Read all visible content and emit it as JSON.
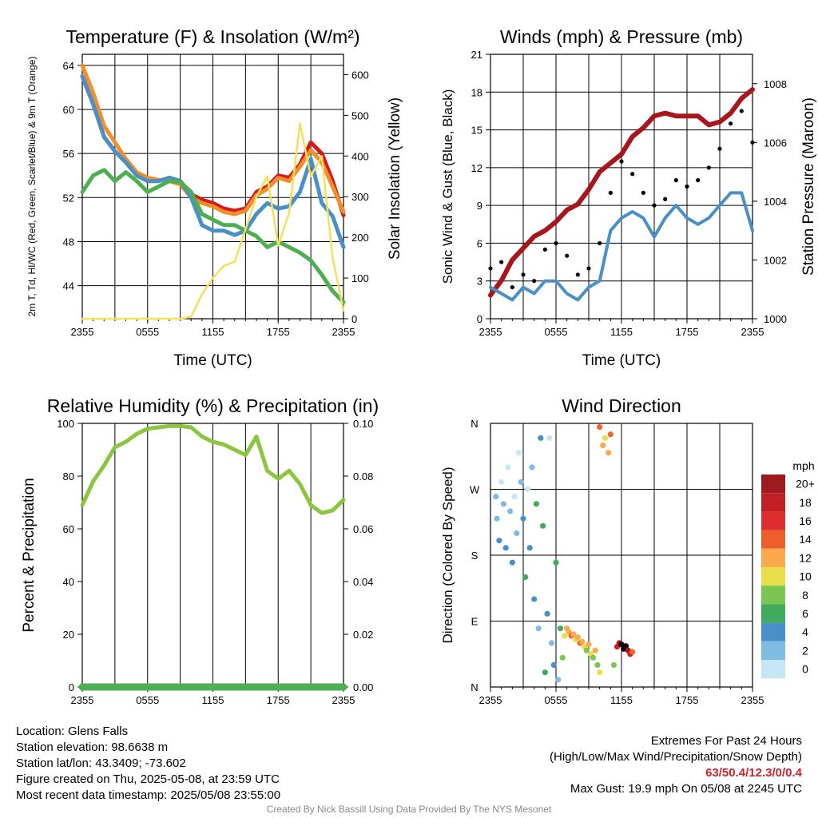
{
  "chart_data": [
    {
      "type": "line",
      "title": "Temperature (F) & Insolation (W/m²)",
      "xlabel": "Time (UTC)",
      "ylabel": "2m T, Td, HI/WC (Red, Green, Scarlet/Blue) & 9m T (Orange)",
      "y2label": "Solar Insolation (Yellow)",
      "x_ticks": [
        "2355",
        "0555",
        "1155",
        "1755",
        "2355"
      ],
      "ylim": [
        41,
        65
      ],
      "y_ticks": [
        44,
        48,
        52,
        56,
        60,
        64
      ],
      "y2lim": [
        0,
        650
      ],
      "y2_ticks": [
        0,
        100,
        200,
        300,
        400,
        500,
        600
      ],
      "hours": [
        0,
        1,
        2,
        3,
        4,
        5,
        6,
        7,
        8,
        9,
        10,
        11,
        12,
        13,
        14,
        15,
        16,
        17,
        18,
        19,
        20,
        21,
        22,
        23,
        24
      ],
      "series": [
        {
          "color": "#d7191c",
          "axis": "left",
          "values": [
            63,
            60.5,
            57.5,
            56.2,
            55.2,
            54,
            53.5,
            53.5,
            53.8,
            53.5,
            52.3,
            51.8,
            51.5,
            51,
            50.8,
            51,
            52.5,
            53,
            54,
            53.8,
            55,
            57,
            56,
            53.5,
            50.4
          ]
        },
        {
          "color": "#f28e2b",
          "axis": "left",
          "values": [
            64,
            61.5,
            58.5,
            57,
            55.5,
            54.3,
            53.8,
            53.6,
            53.5,
            53.2,
            52,
            51.5,
            51.2,
            50.7,
            50.5,
            50.8,
            52.2,
            52.8,
            53.8,
            53.5,
            54.8,
            56.3,
            55.2,
            53,
            50.7
          ]
        },
        {
          "color": "#4a90c8",
          "axis": "left",
          "values": [
            63,
            60.5,
            57.5,
            56.2,
            55.2,
            54,
            53.5,
            53.5,
            53.8,
            53.5,
            52,
            49.5,
            49,
            49,
            48.6,
            49,
            50.5,
            51.5,
            51,
            51.2,
            52.5,
            55.5,
            51.5,
            50.3,
            47.5
          ]
        },
        {
          "color": "#4caf50",
          "axis": "left",
          "values": [
            52.5,
            54,
            54.5,
            53.5,
            54.3,
            53.5,
            52.5,
            53,
            53.5,
            53.4,
            52.5,
            50.5,
            50,
            49.5,
            49.5,
            49,
            48.5,
            47.5,
            48,
            47.5,
            47,
            46.3,
            45,
            43.5,
            42.5
          ]
        },
        {
          "color": "#f5e05a",
          "axis": "right",
          "values": [
            0,
            0,
            0,
            0,
            0,
            0,
            0,
            0,
            0,
            0,
            5,
            60,
            100,
            130,
            140,
            220,
            300,
            350,
            180,
            260,
            480,
            350,
            400,
            150,
            20
          ]
        }
      ]
    },
    {
      "type": "scatter",
      "title": "Winds (mph) & Pressure (mb)",
      "xlabel": "Time (UTC)",
      "ylabel": "Sonic Wind & Gust (Blue, Black)",
      "y2label": "Station Pressure (Maroon)",
      "x_ticks": [
        "2355",
        "0555",
        "1155",
        "1755",
        "2355"
      ],
      "ylim": [
        0,
        21
      ],
      "y_ticks": [
        0,
        3,
        6,
        9,
        12,
        15,
        18,
        21
      ],
      "y2lim": [
        1000,
        1009
      ],
      "y2_ticks": [
        1000,
        1002,
        1004,
        1006,
        1008
      ],
      "hours": [
        0,
        1,
        2,
        3,
        4,
        5,
        6,
        7,
        8,
        9,
        10,
        11,
        12,
        13,
        14,
        15,
        16,
        17,
        18,
        19,
        20,
        21,
        22,
        23,
        24
      ],
      "series": [
        {
          "color": "#a8151b",
          "axis": "right",
          "kind": "line",
          "values": [
            1000.8,
            1001.3,
            1002.0,
            1002.4,
            1002.8,
            1003.0,
            1003.3,
            1003.7,
            1003.9,
            1004.4,
            1005.0,
            1005.3,
            1005.6,
            1006.2,
            1006.5,
            1006.9,
            1007.0,
            1006.9,
            1006.9,
            1006.9,
            1006.6,
            1006.7,
            1007.0,
            1007.5,
            1007.8
          ]
        },
        {
          "color": "#4a90c8",
          "axis": "left",
          "kind": "line",
          "values": [
            2.5,
            2,
            1.5,
            2.5,
            2,
            3,
            3,
            2,
            1.5,
            2.5,
            3,
            7,
            8,
            8.5,
            8,
            6.5,
            8,
            9,
            8,
            7.5,
            8,
            9,
            10,
            10,
            7
          ]
        },
        {
          "color": "#000000",
          "axis": "left",
          "kind": "points",
          "values": [
            4,
            4.5,
            2.5,
            3.5,
            3,
            5.5,
            6,
            5,
            3.5,
            4,
            6,
            10,
            12.5,
            11.5,
            10,
            9,
            9.5,
            11,
            10.5,
            11,
            12,
            13.5,
            15.5,
            16.5,
            14
          ]
        }
      ]
    },
    {
      "type": "line",
      "title": "Relative Humidity (%) & Precipitation (in)",
      "ylabel": "Percent & Precipitation",
      "x_ticks": [
        "2355",
        "0555",
        "1155",
        "1755",
        "2355"
      ],
      "ylim": [
        0,
        100
      ],
      "y_ticks": [
        0,
        20,
        40,
        60,
        80,
        100
      ],
      "y2lim": [
        0,
        0.1
      ],
      "y2_ticks": [
        "0.00",
        "0.02",
        "0.04",
        "0.06",
        "0.08",
        "0.10"
      ],
      "hours": [
        0,
        1,
        2,
        3,
        4,
        5,
        6,
        7,
        8,
        9,
        10,
        11,
        12,
        13,
        14,
        15,
        16,
        17,
        18,
        19,
        20,
        21,
        22,
        23,
        24
      ],
      "series": [
        {
          "color": "#8cc63f",
          "axis": "left",
          "values": [
            69,
            78,
            84,
            91,
            93,
            96,
            98,
            98.5,
            99,
            99,
            98.5,
            95,
            93,
            92,
            90,
            88,
            95,
            82,
            79,
            82,
            77,
            69,
            66,
            67,
            71
          ]
        },
        {
          "color": "#4caf50",
          "axis": "right",
          "values": [
            0,
            0,
            0,
            0,
            0,
            0,
            0,
            0,
            0,
            0,
            0,
            0,
            0,
            0,
            0,
            0,
            0,
            0,
            0,
            0,
            0,
            0,
            0,
            0,
            0
          ]
        }
      ]
    },
    {
      "type": "scatter",
      "title": "Wind Direction",
      "ylabel": "Direction (Colored By Speed)",
      "x_ticks": [
        "2355",
        "0555",
        "1155",
        "1755",
        "2355"
      ],
      "y_ticks": [
        "N",
        "E",
        "S",
        "W",
        "N"
      ],
      "ylim": [
        0,
        360
      ],
      "points": [
        [
          0.5,
          260,
          1
        ],
        [
          0.6,
          230,
          1
        ],
        [
          0.8,
          200,
          2
        ],
        [
          1,
          280,
          0
        ],
        [
          1.2,
          250,
          1
        ],
        [
          1.4,
          190,
          2
        ],
        [
          1.6,
          300,
          0
        ],
        [
          1.8,
          240,
          1
        ],
        [
          2,
          170,
          2
        ],
        [
          2.2,
          260,
          0
        ],
        [
          2.4,
          210,
          1
        ],
        [
          2.6,
          320,
          0
        ],
        [
          2.8,
          280,
          1
        ],
        [
          3,
          230,
          2
        ],
        [
          3.2,
          150,
          3
        ],
        [
          3.4,
          270,
          0
        ],
        [
          3.6,
          190,
          2
        ],
        [
          3.8,
          300,
          1
        ],
        [
          4,
          120,
          2
        ],
        [
          4.2,
          250,
          3
        ],
        [
          4.4,
          80,
          1
        ],
        [
          4.6,
          340,
          2
        ],
        [
          4.8,
          220,
          3
        ],
        [
          5,
          20,
          3
        ],
        [
          5.2,
          100,
          2
        ],
        [
          5.4,
          340,
          0
        ],
        [
          5.6,
          60,
          1
        ],
        [
          5.8,
          30,
          2
        ],
        [
          6,
          170,
          3
        ],
        [
          6.2,
          10,
          1
        ],
        [
          6.4,
          80,
          3
        ],
        [
          6.6,
          40,
          4
        ],
        [
          6.8,
          70,
          5
        ],
        [
          7,
          80,
          6
        ],
        [
          7.2,
          75,
          6
        ],
        [
          7.4,
          70,
          7
        ],
        [
          7.6,
          72,
          6
        ],
        [
          7.8,
          65,
          5
        ],
        [
          8,
          68,
          6
        ],
        [
          8.2,
          60,
          7
        ],
        [
          8.4,
          62,
          6
        ],
        [
          8.6,
          55,
          5
        ],
        [
          8.8,
          50,
          4
        ],
        [
          9,
          58,
          6
        ],
        [
          9.2,
          45,
          5
        ],
        [
          9.4,
          40,
          4
        ],
        [
          9.6,
          50,
          6
        ],
        [
          9.8,
          30,
          4
        ],
        [
          10,
          20,
          5
        ],
        [
          10,
          355,
          7
        ],
        [
          10.3,
          330,
          6
        ],
        [
          10.5,
          340,
          5
        ],
        [
          10.8,
          320,
          6
        ],
        [
          11,
          345,
          7
        ],
        [
          11.3,
          30,
          4
        ],
        [
          11.6,
          55,
          8
        ],
        [
          11.8,
          60,
          9
        ],
        [
          12,
          58,
          10
        ],
        [
          12.2,
          52,
          10
        ],
        [
          12.4,
          56,
          11
        ],
        [
          12.6,
          50,
          9
        ],
        [
          12.8,
          45,
          8
        ],
        [
          13,
          48,
          7
        ]
      ],
      "speed_colors": [
        "#c6e6f6",
        "#7fbbe3",
        "#4a90c8",
        "#41ab5d",
        "#7cc552",
        "#e6df4a",
        "#fba94e",
        "#f4652c",
        "#d7191c",
        "#a8151b"
      ]
    }
  ],
  "legend": {
    "title": "mph",
    "labels": [
      "20+",
      "18",
      "16",
      "14",
      "12",
      "10",
      "8",
      "6",
      "4",
      "2",
      "0"
    ],
    "colors": [
      "#9e1a1f",
      "#c21f24",
      "#dc2e2e",
      "#ee5d2c",
      "#fba94e",
      "#e6df4a",
      "#7cc552",
      "#41ab5d",
      "#4a90c8",
      "#7fbbe3",
      "#c6e6f6"
    ]
  },
  "info_left": {
    "location": "Location: Glens Falls",
    "elevation": "Station elevation: 98.6638 m",
    "latlon": "Station lat/lon: 43.3409; -73.602",
    "created": "Figure created on Thu, 2025-05-08, at 23:59 UTC",
    "recent": "Most recent data timestamp: 2025/05/08 23:55:00"
  },
  "info_right": {
    "line1": "Extremes For Past 24 Hours",
    "line2": "(High/Low/Max Wind/Precipitation/Snow Depth)",
    "extremes": "63/50.4/12.3/0/0.4",
    "gust": "Max Gust: 19.9 mph On 05/08 at 2245 UTC"
  },
  "credit": "Created By Nick Bassill Using Data Provided By The NYS Mesonet"
}
